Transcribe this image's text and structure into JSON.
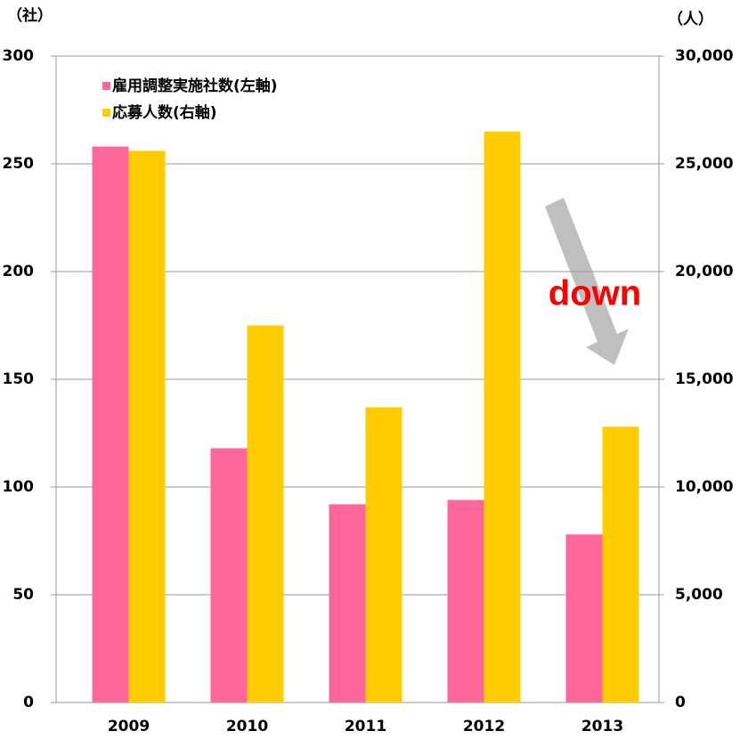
{
  "chart_data": {
    "type": "bar",
    "y_label": "（社）",
    "y2_label": "（人）",
    "categories": [
      "2009",
      "2010",
      "2011",
      "2012",
      "2013"
    ],
    "series": [
      {
        "name": "雇用調整実施社数(左軸)",
        "color": "#ff6699",
        "values": [
          258,
          118,
          92,
          94,
          78
        ]
      },
      {
        "name": "応募人数(右軸)",
        "color": "#ffcc00",
        "axis": "y2",
        "values": [
          25600,
          17500,
          13700,
          26500,
          12800
        ]
      }
    ],
    "ylim": [
      0,
      300
    ],
    "yticks": [
      0,
      50,
      100,
      150,
      200,
      250,
      300
    ],
    "y2lim": [
      0,
      30000
    ],
    "y2ticks": [
      0,
      {
        "value": 5000,
        "label": "5,000"
      },
      {
        "value": 10000,
        "label": "10,000"
      },
      {
        "value": 15000,
        "label": "15,000"
      },
      {
        "value": 20000,
        "label": "20,000"
      },
      {
        "value": 25000,
        "label": "25,000"
      },
      {
        "value": 30000,
        "label": "30,000"
      }
    ],
    "grid": true,
    "legend": "upper left",
    "annotation": "down"
  }
}
